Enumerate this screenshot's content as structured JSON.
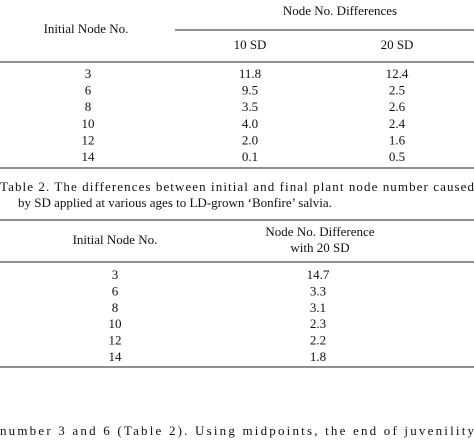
{
  "table1": {
    "header": {
      "row_label": "Initial Node No.",
      "group": "Node No. Differences",
      "columns": [
        "10 SD",
        "20 SD"
      ]
    },
    "rows": [
      [
        "3",
        "11.8",
        "12.4"
      ],
      [
        "6",
        "9.5",
        "2.5"
      ],
      [
        "8",
        "3.5",
        "2.6"
      ],
      [
        "10",
        "4.0",
        "2.4"
      ],
      [
        "12",
        "2.0",
        "1.6"
      ],
      [
        "14",
        "0.1",
        "0.5"
      ]
    ]
  },
  "table2": {
    "caption": [
      "Table 2. The differences between initial and final plant node number caused",
      "by SD applied at various ages to LD-grown ‘Bonfire’ salvia."
    ],
    "header": {
      "row_label": "Initial Node No.",
      "column": [
        "Node No. Difference",
        "with 20 SD"
      ]
    },
    "rows": [
      [
        "3",
        "14.7"
      ],
      [
        "6",
        "3.3"
      ],
      [
        "8",
        "3.1"
      ],
      [
        "10",
        "2.3"
      ],
      [
        "12",
        "2.2"
      ],
      [
        "14",
        "1.8"
      ]
    ]
  },
  "body_text": "number 3 and 6 (Table 2). Using midpoints, the end of juvenility"
}
